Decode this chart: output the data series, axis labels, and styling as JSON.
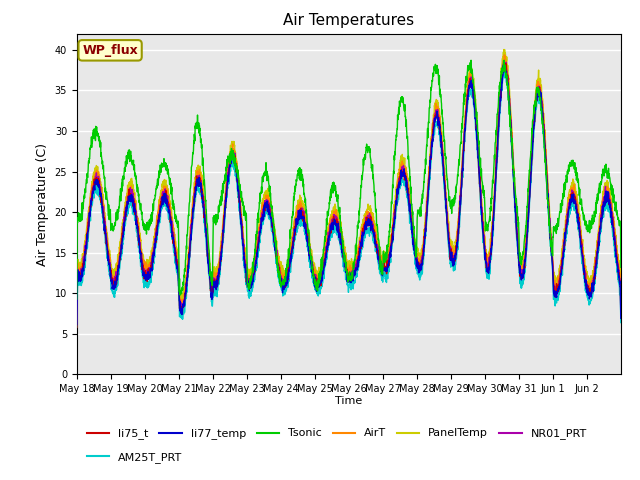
{
  "title": "Air Temperatures",
  "xlabel": "Time",
  "ylabel": "Air Temperature (C)",
  "ylim": [
    0,
    42
  ],
  "yticks": [
    0,
    5,
    10,
    15,
    20,
    25,
    30,
    35,
    40
  ],
  "background_color": "#e8e8e8",
  "series_colors": {
    "li75_t": "#cc0000",
    "li77_temp": "#0000cc",
    "Tsonic": "#00cc00",
    "AirT": "#ff8800",
    "PanelTemp": "#cccc00",
    "NR01_PRT": "#aa00aa",
    "AM25T_PRT": "#00cccc"
  },
  "legend_label": "WP_flux",
  "x_tick_labels": [
    "May 18",
    "May 19",
    "May 20",
    "May 21",
    "May 22",
    "May 23",
    "May 24",
    "May 25",
    "May 26",
    "May 27",
    "May 28",
    "May 29",
    "May 30",
    "May 31",
    "Jun 1",
    "Jun 2"
  ],
  "day_peaks": [
    24,
    22,
    22,
    24,
    27,
    21,
    20,
    19,
    19,
    25,
    32,
    36,
    38,
    35,
    22,
    22
  ],
  "day_mins": [
    12,
    11,
    12,
    8,
    11,
    11,
    11,
    11,
    12,
    13,
    13,
    14,
    13,
    12,
    10,
    10
  ],
  "tsonic_peaks": [
    30,
    27,
    26,
    31,
    27,
    25,
    25,
    23,
    28,
    34,
    38,
    38,
    38,
    35,
    26,
    25
  ],
  "tsonic_mins": [
    19,
    18,
    18,
    10,
    19,
    11,
    11,
    11,
    12,
    14,
    20,
    21,
    18,
    14,
    18,
    18
  ]
}
